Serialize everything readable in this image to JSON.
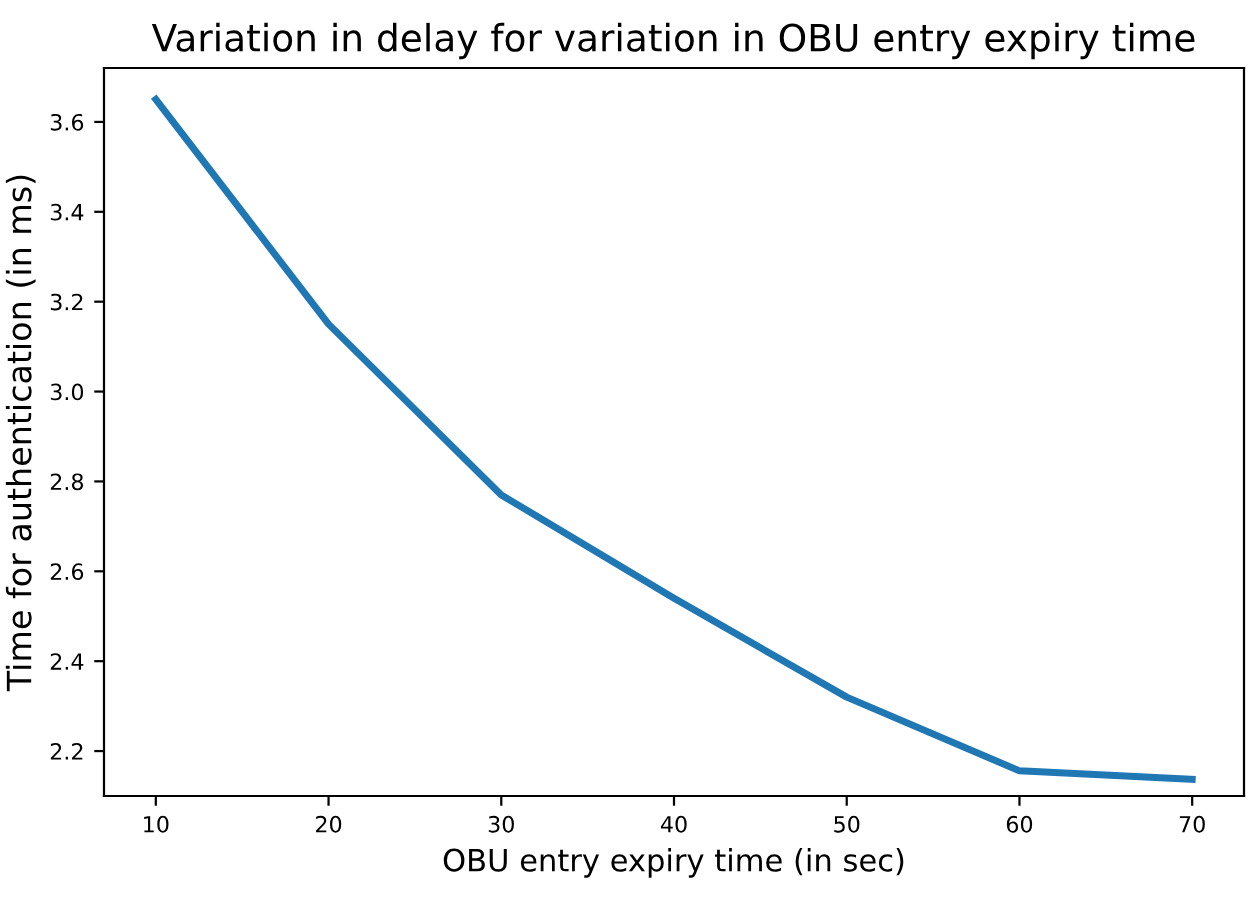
{
  "chart_data": {
    "type": "line",
    "title": "Variation in delay for variation in OBU entry expiry time",
    "xlabel": "OBU entry expiry time (in sec)",
    "ylabel": "Time for authentication (in ms)",
    "x": [
      10,
      20,
      30,
      40,
      50,
      60,
      70
    ],
    "series": [
      {
        "color": "#1f77b4",
        "values": [
          3.65,
          3.15,
          2.77,
          2.54,
          2.32,
          2.156,
          2.137
        ]
      }
    ],
    "xlim": [
      7,
      73
    ],
    "ylim": [
      2.1,
      3.72
    ],
    "xticks": [
      10,
      20,
      30,
      40,
      50,
      60,
      70
    ],
    "yticks": [
      {
        "value": 2.2,
        "label": "2.2"
      },
      {
        "value": 2.4,
        "label": "2.4"
      },
      {
        "value": 2.6,
        "label": "2.6"
      },
      {
        "value": 2.8,
        "label": "2.8"
      },
      {
        "value": 3.0,
        "label": "3.0"
      },
      {
        "value": 3.2,
        "label": "3.2"
      },
      {
        "value": 3.4,
        "label": "3.4"
      },
      {
        "value": 3.6,
        "label": "3.6"
      }
    ],
    "grid": false,
    "marker": "none",
    "line_style": "solid"
  }
}
